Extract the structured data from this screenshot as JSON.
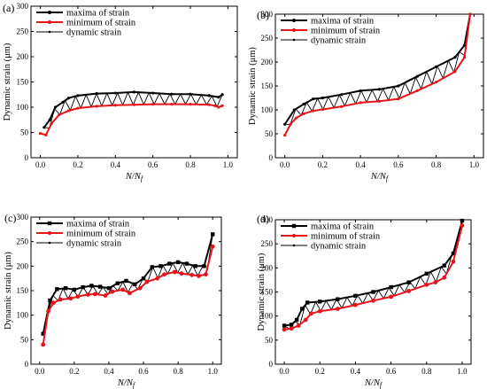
{
  "colors": {
    "maxima": "#000000",
    "minimum": "#e8141b",
    "dynamic": "#000000",
    "axis": "#000000"
  },
  "chart_data": [
    {
      "type": "line",
      "panel_label": "(a)",
      "xlabel_main": "N/N",
      "xlabel_sub": "f",
      "ylabel": "Dynamic strain (μm)",
      "xlim": [
        -0.05,
        1.05
      ],
      "ylim": [
        0,
        300
      ],
      "xticks": [
        "0.0",
        "0.2",
        "0.4",
        "0.6",
        "0.8",
        "1.0"
      ],
      "yticks": [
        "0",
        "50",
        "100",
        "150",
        "200",
        "250",
        "300"
      ],
      "legend": [
        "maxima of strain",
        "minimum of strain",
        "dynamic strain"
      ],
      "legend_position": "top-left",
      "marker": "dot",
      "series": [
        {
          "name": "maxima of strain",
          "x": [
            0.02,
            0.05,
            0.08,
            0.12,
            0.15,
            0.2,
            0.3,
            0.4,
            0.5,
            0.6,
            0.7,
            0.8,
            0.9,
            0.95,
            0.97
          ],
          "values": [
            60,
            75,
            100,
            110,
            118,
            123,
            127,
            128,
            130,
            128,
            126,
            126,
            123,
            120,
            125
          ]
        },
        {
          "name": "minimum of strain",
          "x": [
            0.0,
            0.03,
            0.06,
            0.1,
            0.15,
            0.2,
            0.3,
            0.4,
            0.5,
            0.6,
            0.7,
            0.8,
            0.9,
            0.93,
            0.95,
            0.97
          ],
          "values": [
            48,
            45,
            68,
            85,
            93,
            98,
            102,
            104,
            105,
            106,
            106,
            106,
            105,
            103,
            100,
            103
          ]
        }
      ]
    },
    {
      "type": "line",
      "panel_label": "(b)",
      "xlabel_main": "N/N",
      "xlabel_sub": "f",
      "ylabel": "Dynamic strain (μm)",
      "xlim": [
        -0.05,
        1.05
      ],
      "ylim": [
        0,
        300
      ],
      "xticks": [
        "0.0",
        "0.2",
        "0.4",
        "0.6",
        "0.8",
        "1.0"
      ],
      "yticks": [
        "0",
        "50",
        "100",
        "150",
        "200",
        "250",
        "300"
      ],
      "legend": [
        "maxima of strain",
        "minimum of strain",
        "dynamic strain"
      ],
      "legend_position": "top-left",
      "marker": "dot",
      "series": [
        {
          "name": "maxima of strain",
          "x": [
            0.0,
            0.05,
            0.1,
            0.15,
            0.2,
            0.3,
            0.4,
            0.5,
            0.6,
            0.7,
            0.8,
            0.9,
            0.95,
            0.98
          ],
          "values": [
            70,
            100,
            112,
            123,
            125,
            132,
            140,
            143,
            150,
            170,
            190,
            210,
            235,
            300
          ]
        },
        {
          "name": "minimum of strain",
          "x": [
            0.0,
            0.03,
            0.06,
            0.1,
            0.15,
            0.2,
            0.3,
            0.4,
            0.5,
            0.6,
            0.7,
            0.8,
            0.9,
            0.95,
            0.98
          ],
          "values": [
            47,
            70,
            83,
            92,
            98,
            101,
            107,
            115,
            118,
            123,
            140,
            158,
            180,
            210,
            300
          ]
        }
      ]
    },
    {
      "type": "line",
      "panel_label": "(c)",
      "xlabel_main": "N/N",
      "xlabel_sub": "f",
      "ylabel": "Dynamic strain (μm)",
      "xlim": [
        -0.05,
        1.05
      ],
      "ylim": [
        0,
        300
      ],
      "xticks": [
        "0.0",
        "0.2",
        "0.4",
        "0.6",
        "0.8",
        "1.0"
      ],
      "yticks": [
        "0",
        "50",
        "100",
        "150",
        "200",
        "250",
        "300"
      ],
      "legend": [
        "maxima of strain",
        "minimum of strain",
        "dynamic strain"
      ],
      "legend_position": "top-left",
      "marker": "square",
      "series": [
        {
          "name": "maxima of strain",
          "x": [
            0.02,
            0.06,
            0.1,
            0.15,
            0.2,
            0.25,
            0.3,
            0.35,
            0.4,
            0.45,
            0.5,
            0.55,
            0.6,
            0.65,
            0.7,
            0.75,
            0.8,
            0.85,
            0.9,
            0.95,
            1.0
          ],
          "values": [
            62,
            130,
            153,
            155,
            152,
            157,
            160,
            158,
            155,
            165,
            170,
            163,
            175,
            198,
            200,
            205,
            208,
            205,
            200,
            200,
            265
          ]
        },
        {
          "name": "minimum of strain",
          "x": [
            0.02,
            0.05,
            0.08,
            0.12,
            0.18,
            0.22,
            0.28,
            0.32,
            0.38,
            0.42,
            0.48,
            0.52,
            0.58,
            0.62,
            0.68,
            0.72,
            0.78,
            0.82,
            0.88,
            0.92,
            0.96,
            1.0
          ],
          "values": [
            40,
            108,
            125,
            132,
            134,
            138,
            142,
            143,
            140,
            148,
            152,
            145,
            155,
            168,
            175,
            183,
            188,
            185,
            182,
            180,
            183,
            240
          ]
        }
      ]
    },
    {
      "type": "line",
      "panel_label": "(d)",
      "xlabel_main": "N/N",
      "xlabel_sub": "f",
      "ylabel": "Dynamic strain (μm)",
      "xlim": [
        -0.05,
        1.05
      ],
      "ylim": [
        0,
        300
      ],
      "xticks": [
        "0.0",
        "0.2",
        "0.4",
        "0.6",
        "0.8",
        "1.0"
      ],
      "yticks": [
        "0",
        "50",
        "100",
        "150",
        "200",
        "250",
        "300"
      ],
      "legend": [
        "maxima of strain",
        "minimum of strain",
        "dynamic strain"
      ],
      "legend_position": "top-left",
      "marker": "square",
      "series": [
        {
          "name": "maxima of strain",
          "x": [
            0.0,
            0.04,
            0.07,
            0.1,
            0.13,
            0.2,
            0.3,
            0.4,
            0.5,
            0.6,
            0.7,
            0.8,
            0.9,
            0.95,
            1.0
          ],
          "values": [
            80,
            82,
            92,
            115,
            128,
            130,
            135,
            142,
            150,
            160,
            170,
            188,
            205,
            230,
            298
          ]
        },
        {
          "name": "minimum of strain",
          "x": [
            0.0,
            0.04,
            0.08,
            0.12,
            0.15,
            0.2,
            0.3,
            0.4,
            0.5,
            0.6,
            0.7,
            0.8,
            0.85,
            0.9,
            0.95,
            1.0
          ],
          "values": [
            72,
            74,
            80,
            92,
            105,
            110,
            115,
            123,
            132,
            140,
            152,
            165,
            170,
            180,
            213,
            288
          ]
        }
      ]
    }
  ]
}
